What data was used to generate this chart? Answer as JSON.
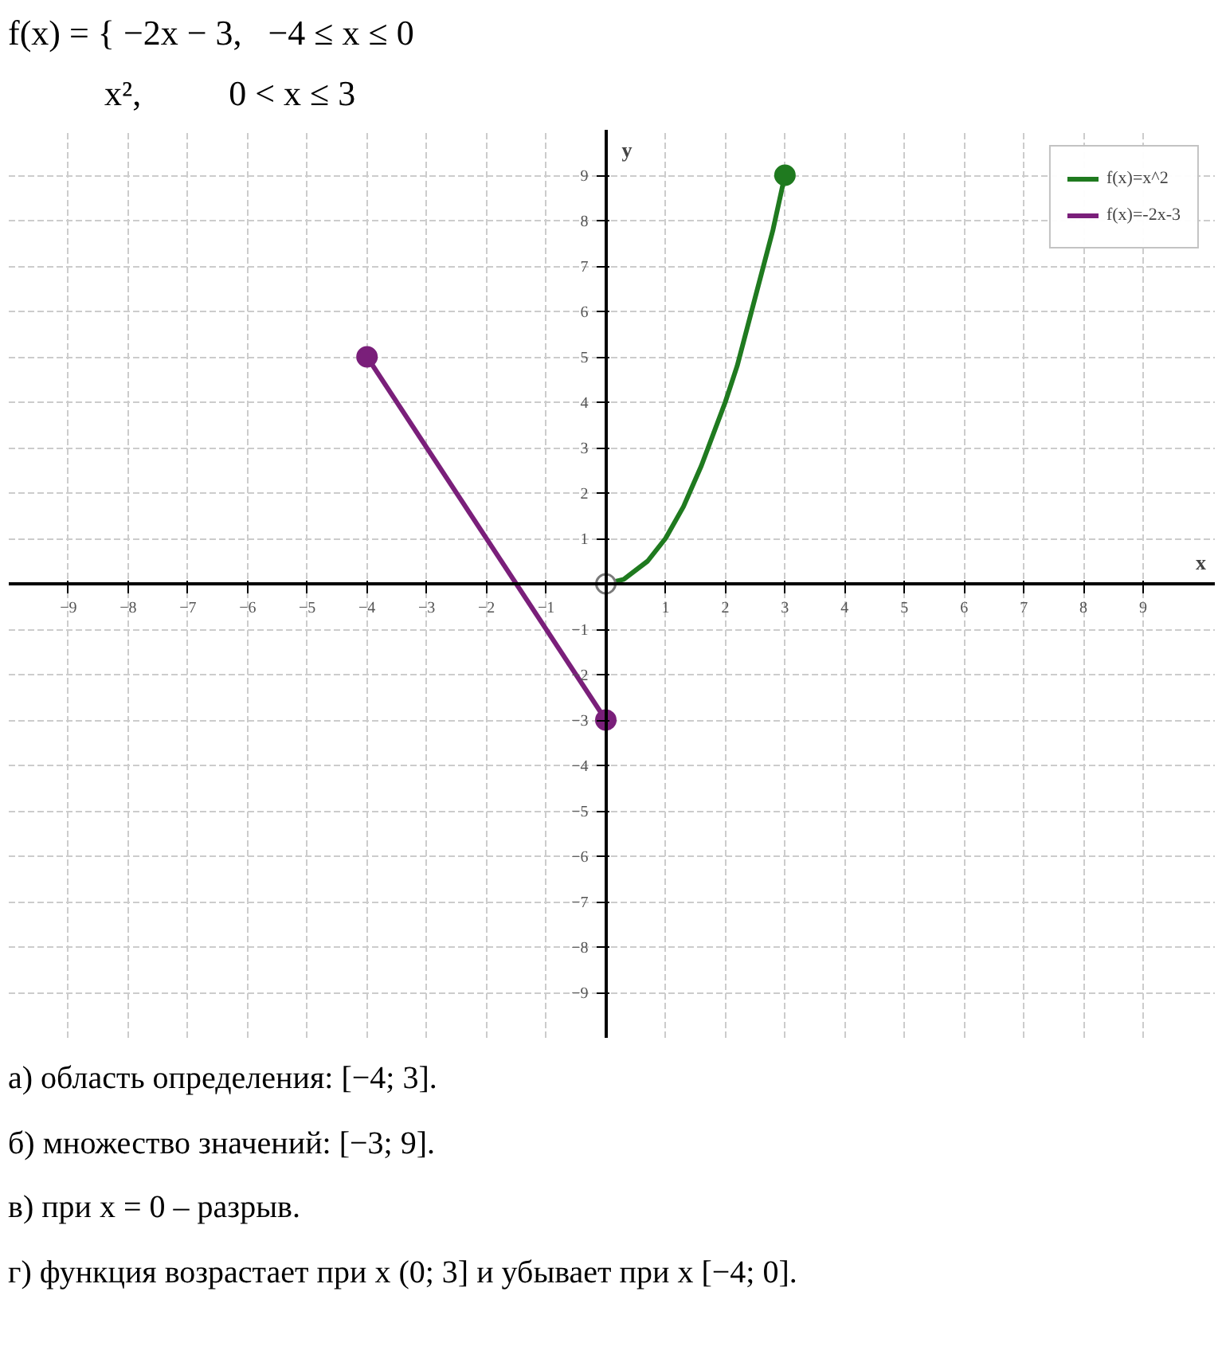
{
  "chart_data": {
    "type": "line",
    "title": "f(x) = { −2x − 3,   −4 ≤ x ≤ 0",
    "subtitle": "           x²,          0 < x ≤ 3",
    "xlabel": "x",
    "ylabel": "y",
    "xlim": [
      -10,
      10.2
    ],
    "ylim": [
      -10,
      10
    ],
    "xticks": [
      -9,
      -8,
      -7,
      -6,
      -5,
      -4,
      -3,
      -2,
      -1,
      1,
      2,
      3,
      4,
      5,
      6,
      7,
      8,
      9
    ],
    "yticks": [
      -9,
      -8,
      -7,
      -6,
      -5,
      -4,
      -3,
      -2,
      -1,
      1,
      2,
      3,
      4,
      5,
      6,
      7,
      8,
      9
    ],
    "grid": true,
    "legend": "top right",
    "line_style": "solid",
    "series": [
      {
        "name": "f(x)=x^2",
        "color": "#1f7a1f",
        "x": [
          0,
          0.3,
          0.7,
          1,
          1.3,
          1.6,
          2,
          2.2,
          2.5,
          2.8,
          3
        ],
        "values": [
          0,
          0.1,
          0.5,
          1,
          1.7,
          2.6,
          4,
          4.8,
          6.3,
          7.8,
          9
        ]
      },
      {
        "name": "f(x)=-2x-3",
        "color": "#7a1f7a",
        "x": [
          -4,
          0
        ],
        "values": [
          5,
          -3
        ]
      },
      {
        "type": "scatter",
        "color": "#1f7a1f",
        "x": [
          3
        ],
        "values": [
          9
        ]
      },
      {
        "type": "scatter",
        "color": "#7a1f7a",
        "x": [
          -4,
          0
        ],
        "values": [
          5,
          -3
        ]
      },
      {
        "type": "scatter",
        "color": "#ffffff",
        "x": [
          0
        ],
        "values": [
          0
        ]
      }
    ],
    "annotations": [
      "а) область определения: [−4; 3].",
      "б) множество значений: [−3; 9].",
      "в) при x = 0 – разрыв.",
      "г) функция возрастает при x (0; 3] и убывает при x [−4; 0]."
    ]
  }
}
